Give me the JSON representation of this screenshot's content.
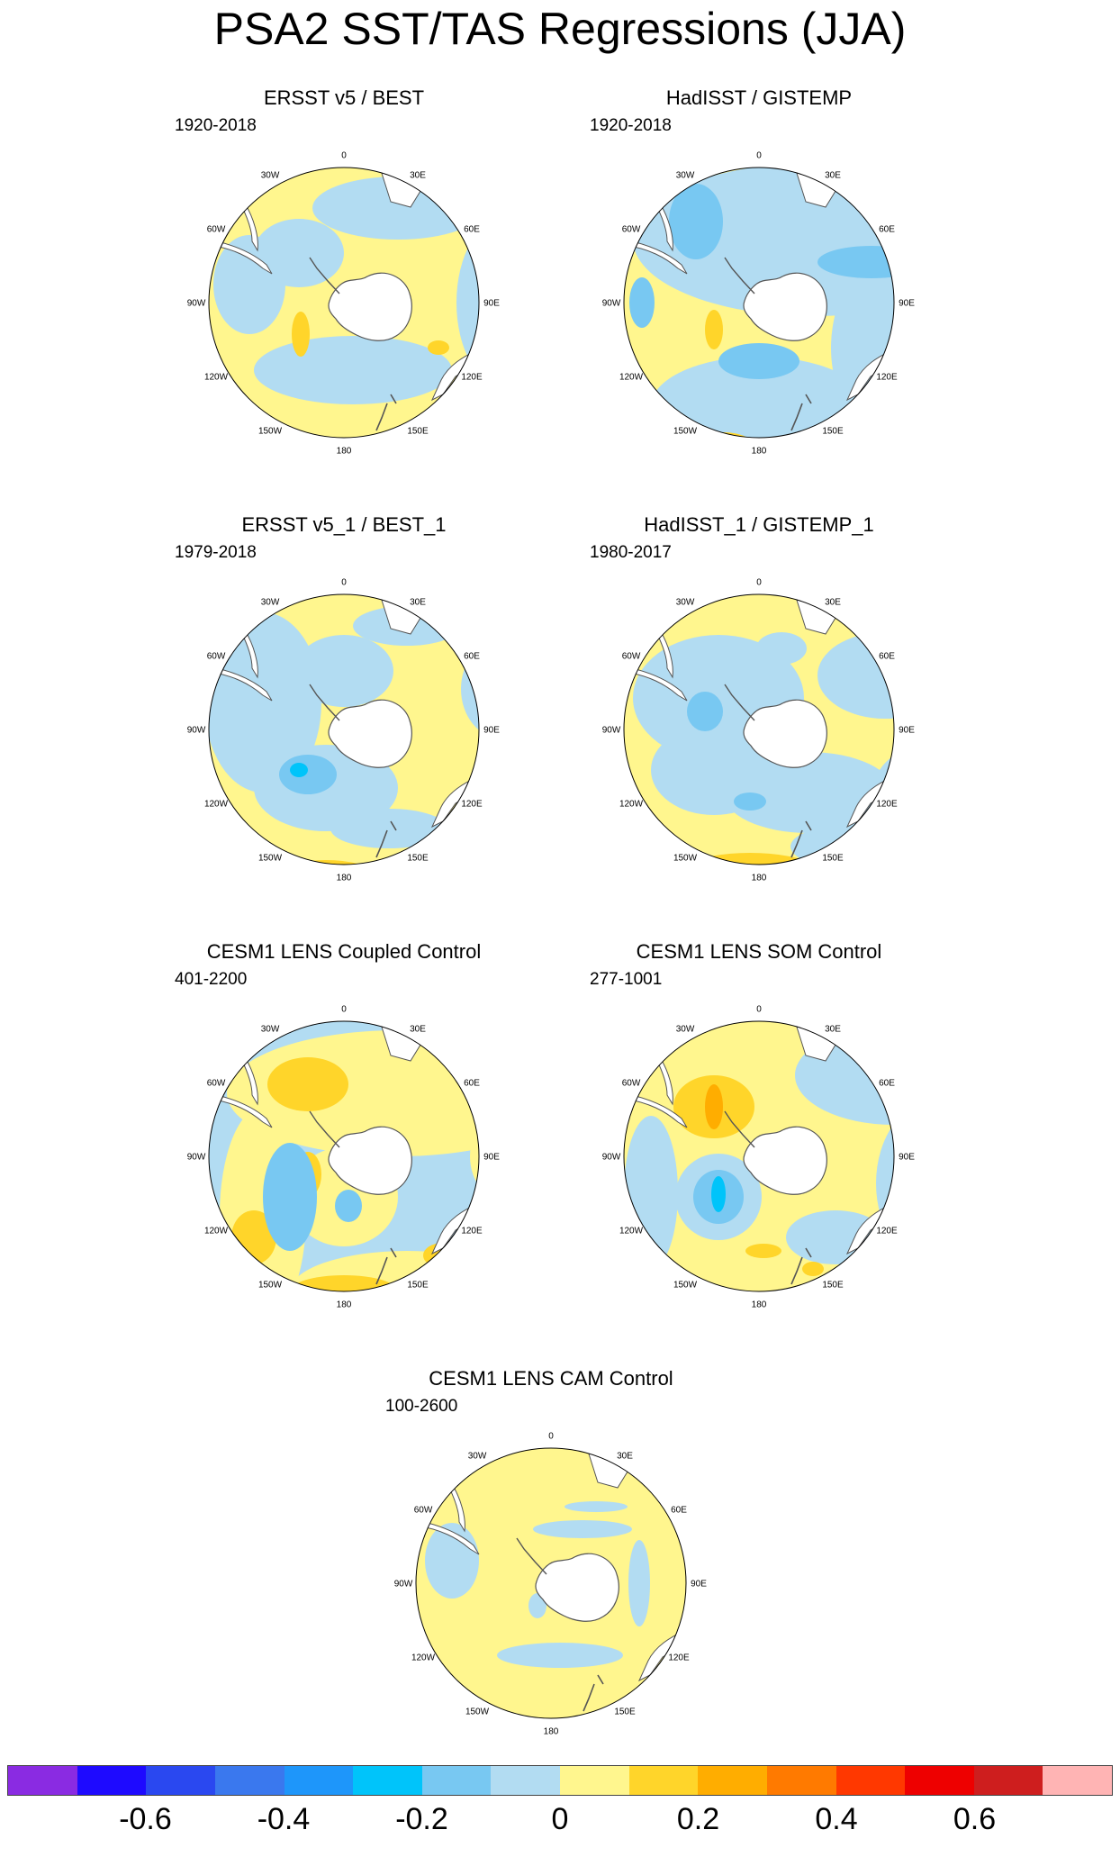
{
  "figure": {
    "title": "PSA2 SST/TAS Regressions (JJA)"
  },
  "chart_data": {
    "type": "heatmap",
    "projection": "south-polar-stereographic",
    "panels": [
      {
        "title": "ERSST v5 / BEST",
        "period": "1920-2018",
        "pattern": "A"
      },
      {
        "title": "HadISST / GISTEMP",
        "period": "1920-2018",
        "pattern": "B"
      },
      {
        "title": "ERSST v5_1 / BEST_1",
        "period": "1979-2018",
        "pattern": "C"
      },
      {
        "title": "HadISST_1 / GISTEMP_1",
        "period": "1980-2017",
        "pattern": "D"
      },
      {
        "title": "CESM1 LENS Coupled Control",
        "period": "401-2200",
        "pattern": "E"
      },
      {
        "title": "CESM1 LENS SOM Control",
        "period": "277-1001",
        "pattern": "F"
      },
      {
        "title": "CESM1 LENS CAM Control",
        "period": "100-2600",
        "pattern": "G"
      }
    ],
    "longitude_labels": [
      "0",
      "30E",
      "60E",
      "90E",
      "120E",
      "150E",
      "180",
      "150W",
      "120W",
      "90W",
      "60W",
      "30W"
    ],
    "colorbar": {
      "colors": [
        "#8A2BE2",
        "#1E0AFF",
        "#2A48F0",
        "#3A78EE",
        "#1E96FA",
        "#00C4FA",
        "#78C8F2",
        "#B2DCF2",
        "#FFF68E",
        "#FFD52A",
        "#FFAD00",
        "#FF7A00",
        "#FF3800",
        "#EE0000",
        "#CE1E1E",
        "#FFB4B4"
      ],
      "tick_labels": [
        "-0.6",
        "-0.4",
        "-0.2",
        "0",
        "0.2",
        "0.4",
        "0.6"
      ],
      "tick_values": [
        -0.6,
        -0.4,
        -0.2,
        0,
        0.2,
        0.4,
        0.6
      ],
      "range": [
        -0.8,
        0.8
      ]
    }
  }
}
